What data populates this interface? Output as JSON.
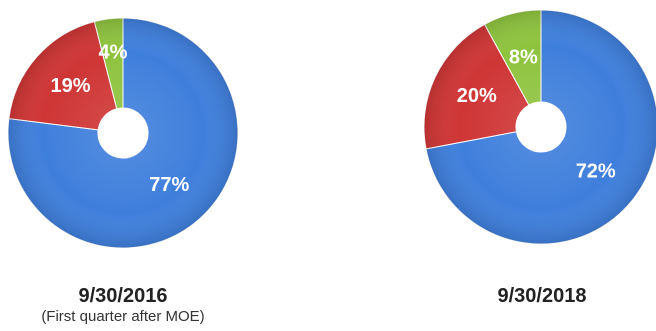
{
  "colors": {
    "blue": "#3f7fdc",
    "red": "#cf3535",
    "green": "#8ec33e"
  },
  "chart_data": [
    {
      "type": "pie",
      "title": "9/30/2016",
      "subtitle": "(First quarter after MOE)",
      "slices": [
        {
          "label": "77%",
          "value": 77,
          "color": "#3f7fdc"
        },
        {
          "label": "19%",
          "value": 19,
          "color": "#cf3535"
        },
        {
          "label": "4%",
          "value": 4,
          "color": "#8ec33e"
        }
      ]
    },
    {
      "type": "pie",
      "title": "9/30/2018",
      "subtitle": "",
      "slices": [
        {
          "label": "72%",
          "value": 72,
          "color": "#3f7fdc"
        },
        {
          "label": "20%",
          "value": 20,
          "color": "#cf3535"
        },
        {
          "label": "8%",
          "value": 8,
          "color": "#8ec33e"
        }
      ]
    }
  ]
}
